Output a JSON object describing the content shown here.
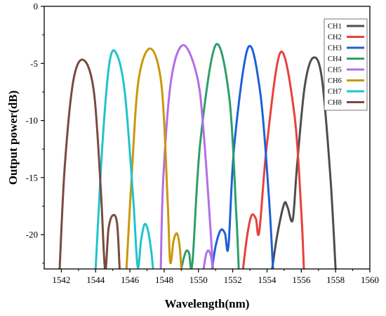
{
  "chart_data": {
    "type": "line",
    "title": "",
    "xlabel": "Wavelength(nm)",
    "ylabel": "Output power(dB)",
    "xlim": [
      1541,
      1560
    ],
    "ylim": [
      -23,
      0
    ],
    "x_ticks": [
      1542,
      1544,
      1546,
      1548,
      1550,
      1552,
      1554,
      1556,
      1558,
      1560
    ],
    "y_ticks": [
      0,
      -5,
      -10,
      -15,
      -20
    ],
    "x_tick_labels": [
      "1542",
      "1544",
      "1546",
      "1548",
      "1550",
      "1552",
      "1554",
      "1556",
      "1558",
      "1560"
    ],
    "y_tick_labels": [
      "0",
      "-5",
      "-10",
      "-15",
      "-20"
    ],
    "grid": false,
    "legend_position": "top-right",
    "series": [
      {
        "name": "CH1",
        "color": "#4d4d4d",
        "x": [
          1554.3,
          1554.6,
          1555.0,
          1555.2,
          1555.5,
          1555.75,
          1556.2,
          1556.7,
          1557.2,
          1557.7,
          1558.0
        ],
        "y": [
          -23.0,
          -20.0,
          -17.3,
          -17.6,
          -18.7,
          -14.0,
          -7.0,
          -4.5,
          -6.3,
          -15.0,
          -23.0
        ]
      },
      {
        "name": "CH2",
        "color": "#e8403c",
        "x": [
          1552.6,
          1552.85,
          1553.1,
          1553.35,
          1553.55,
          1554.0,
          1554.8,
          1555.6,
          1556.0,
          1556.15
        ],
        "y": [
          -23.0,
          -20.0,
          -18.3,
          -18.6,
          -19.7,
          -12.0,
          -4.0,
          -9.5,
          -18.0,
          -23.0
        ]
      },
      {
        "name": "CH3",
        "color": "#1e5fd8",
        "x": [
          1550.8,
          1551.0,
          1551.3,
          1551.55,
          1551.75,
          1552.1,
          1552.9,
          1553.6,
          1554.1,
          1554.35
        ],
        "y": [
          -23.0,
          -21.0,
          -19.6,
          -19.9,
          -21.0,
          -12.0,
          -3.6,
          -7.5,
          -16.5,
          -23.0
        ]
      },
      {
        "name": "CH4",
        "color": "#2e9e6a",
        "x": [
          1549.0,
          1549.15,
          1549.3,
          1549.45,
          1549.65,
          1550.1,
          1551.0,
          1551.8,
          1552.2,
          1552.35
        ],
        "y": [
          -23.0,
          -22.0,
          -21.4,
          -21.6,
          -22.4,
          -12.0,
          -3.4,
          -8.0,
          -18.0,
          -23.0
        ]
      },
      {
        "name": "CH5",
        "color": "#b26ee6",
        "x": [
          1550.3,
          1550.45,
          1550.6,
          1550.75,
          1550.85,
          1550.3,
          1549.9,
          1549.1,
          1548.4,
          1547.95,
          1547.8
        ],
        "y": [
          -23.0,
          -21.7,
          -21.4,
          -22.0,
          -23.0,
          -11.0,
          -6.0,
          -3.4,
          -6.5,
          -15.0,
          -23.0
        ]
      },
      {
        "name": "CH6",
        "color": "#c9980a",
        "x": [
          1545.8,
          1546.1,
          1546.5,
          1547.2,
          1547.85,
          1548.2,
          1548.35,
          1548.55,
          1548.75,
          1548.9,
          1549.0
        ],
        "y": [
          -23.0,
          -15.0,
          -6.5,
          -3.7,
          -7.0,
          -17.0,
          -22.4,
          -20.5,
          -19.9,
          -21.0,
          -23.0
        ]
      },
      {
        "name": "CH7",
        "color": "#21c3cd",
        "x": [
          1544.0,
          1544.4,
          1544.8,
          1545.2,
          1545.7,
          1546.2,
          1546.45,
          1546.65,
          1546.85,
          1547.05,
          1547.25,
          1547.35
        ],
        "y": [
          -23.0,
          -12.0,
          -5.0,
          -4.1,
          -7.5,
          -17.0,
          -22.8,
          -20.5,
          -19.1,
          -19.6,
          -21.5,
          -23.0
        ]
      },
      {
        "name": "CH8",
        "color": "#7a4a3f",
        "x": [
          1541.9,
          1542.2,
          1542.7,
          1543.3,
          1543.9,
          1544.3,
          1544.55,
          1544.75,
          1545.0,
          1545.25,
          1545.4
        ],
        "y": [
          -23.0,
          -14.0,
          -6.5,
          -4.7,
          -7.5,
          -16.0,
          -23.0,
          -19.5,
          -18.3,
          -19.0,
          -23.0
        ]
      }
    ]
  }
}
